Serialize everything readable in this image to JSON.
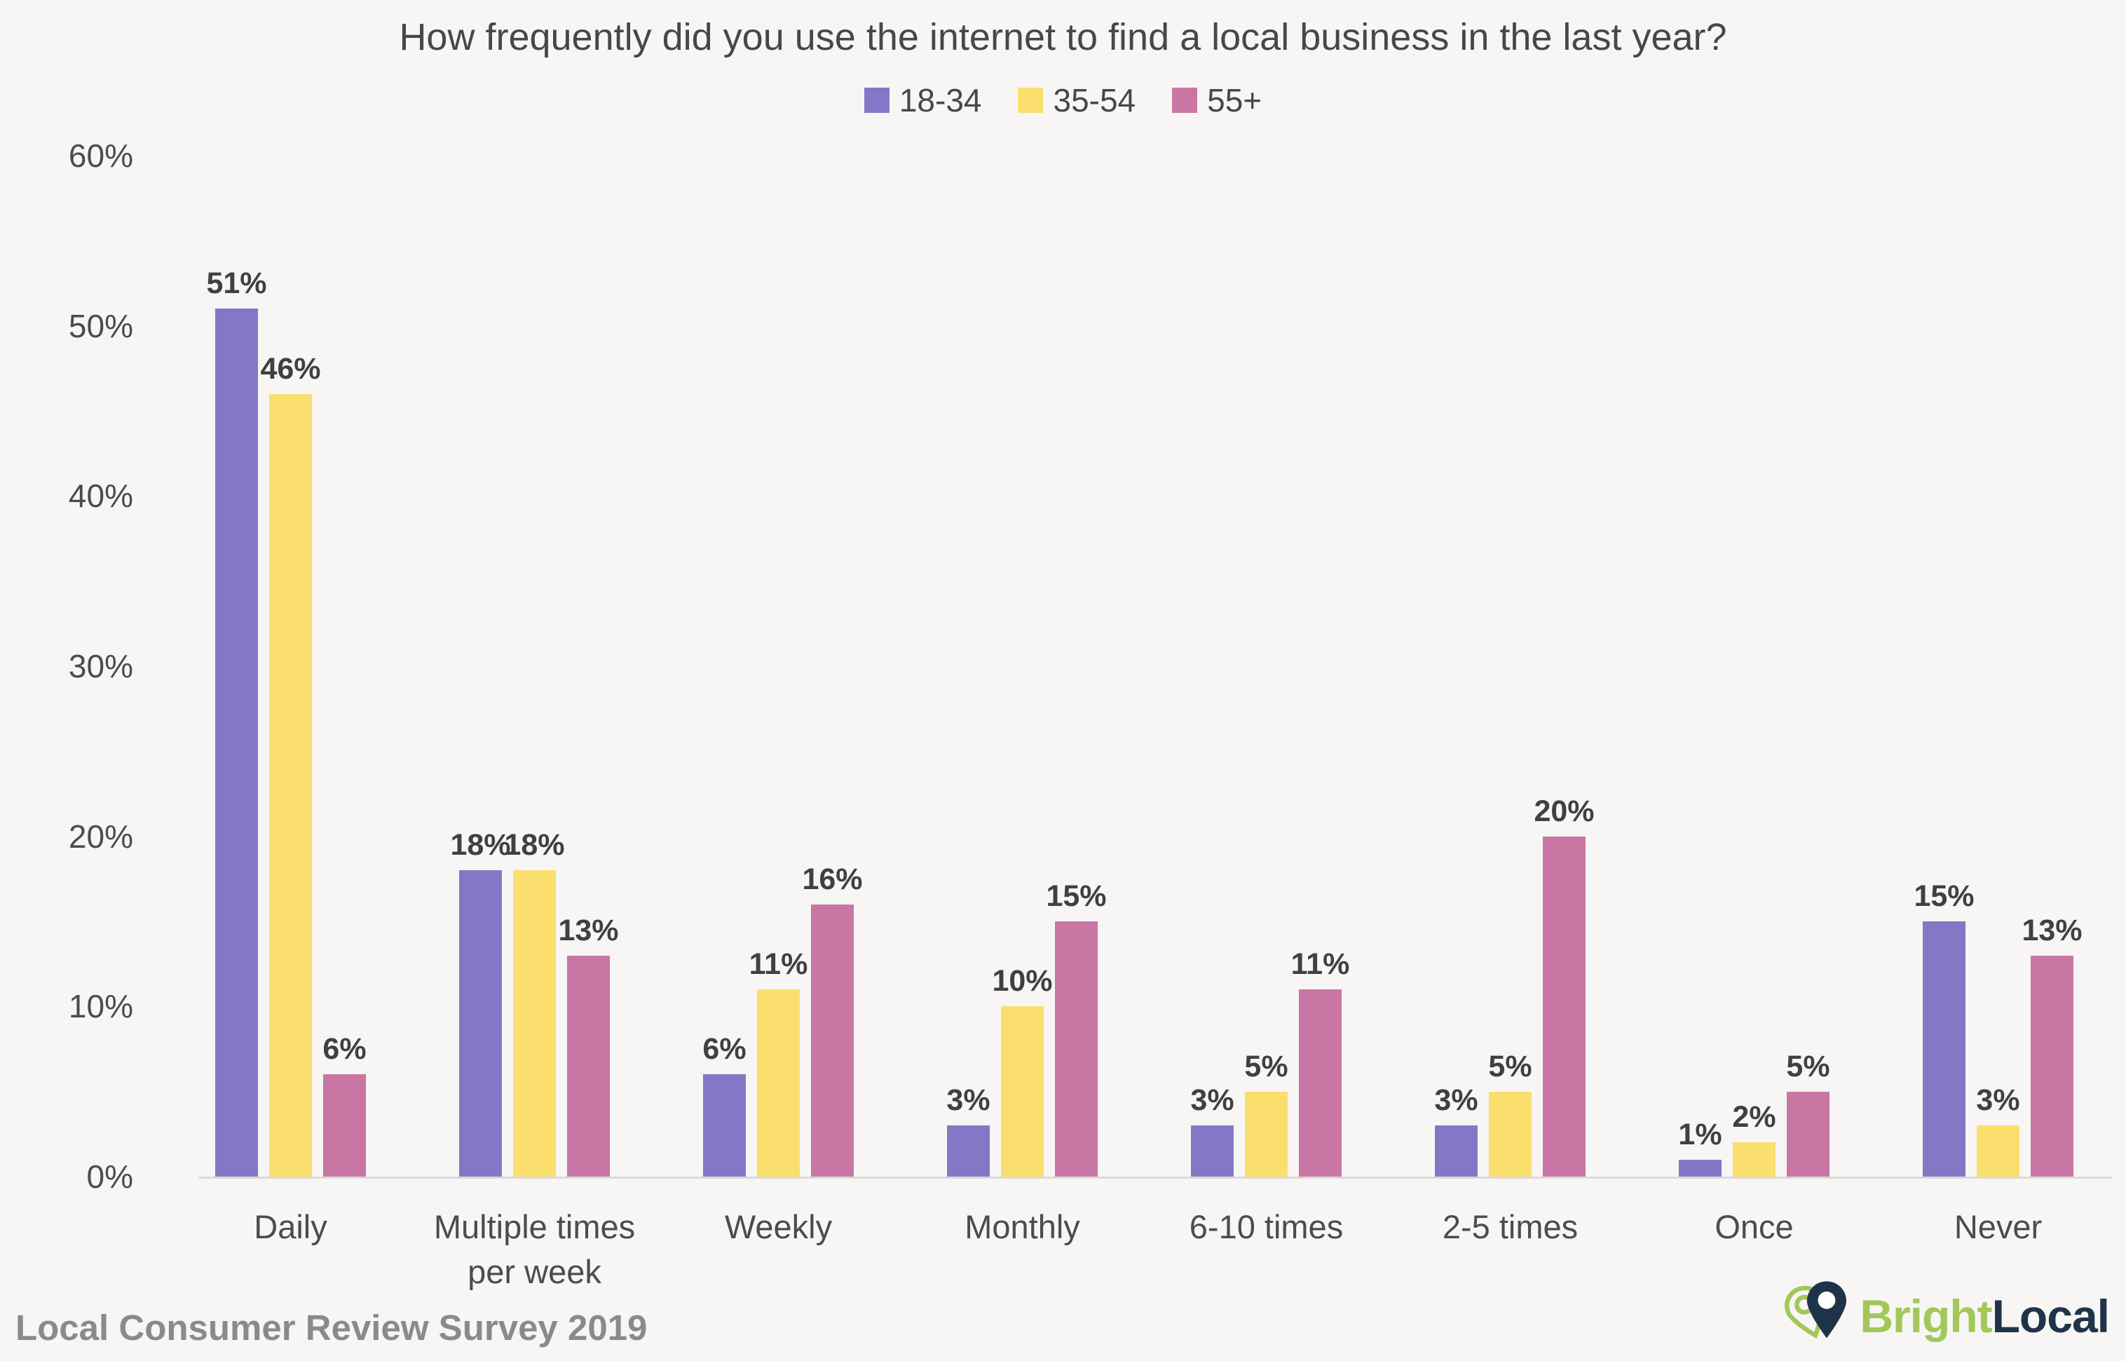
{
  "title": "How frequently did you use the internet to find a local business in the last year?",
  "chart_data": {
    "type": "bar",
    "categories": [
      "Daily",
      "Multiple times per week",
      "Weekly",
      "Monthly",
      "6-10 times",
      "2-5 times",
      "Once",
      "Never"
    ],
    "series": [
      {
        "name": "18-34",
        "color": "#8477c6",
        "values": [
          51,
          18,
          6,
          3,
          3,
          3,
          1,
          15
        ]
      },
      {
        "name": "35-54",
        "color": "#fbdf6e",
        "values": [
          46,
          18,
          11,
          10,
          5,
          5,
          2,
          3
        ]
      },
      {
        "name": "55+",
        "color": "#ca76a4",
        "values": [
          6,
          13,
          16,
          15,
          11,
          20,
          5,
          13
        ]
      }
    ],
    "value_suffix": "%",
    "y_ticks": [
      "60%",
      "50%",
      "40%",
      "30%",
      "20%",
      "10%",
      "0%"
    ],
    "ylim": [
      0,
      60
    ],
    "grid": false,
    "legend_position": "top"
  },
  "footer": {
    "source": "Local Consumer Review Survey 2019"
  },
  "logo": {
    "bright": "Bright",
    "local": "Local"
  },
  "colors": {
    "background": "#f7f6f4",
    "title_text": "#474747",
    "tick_text": "#4c4c4c",
    "value_text": "#404040",
    "axis_line": "#dbdad7",
    "footer_text": "#8a8a8a",
    "logo_green": "#a2c85a",
    "logo_navy": "#203449"
  }
}
